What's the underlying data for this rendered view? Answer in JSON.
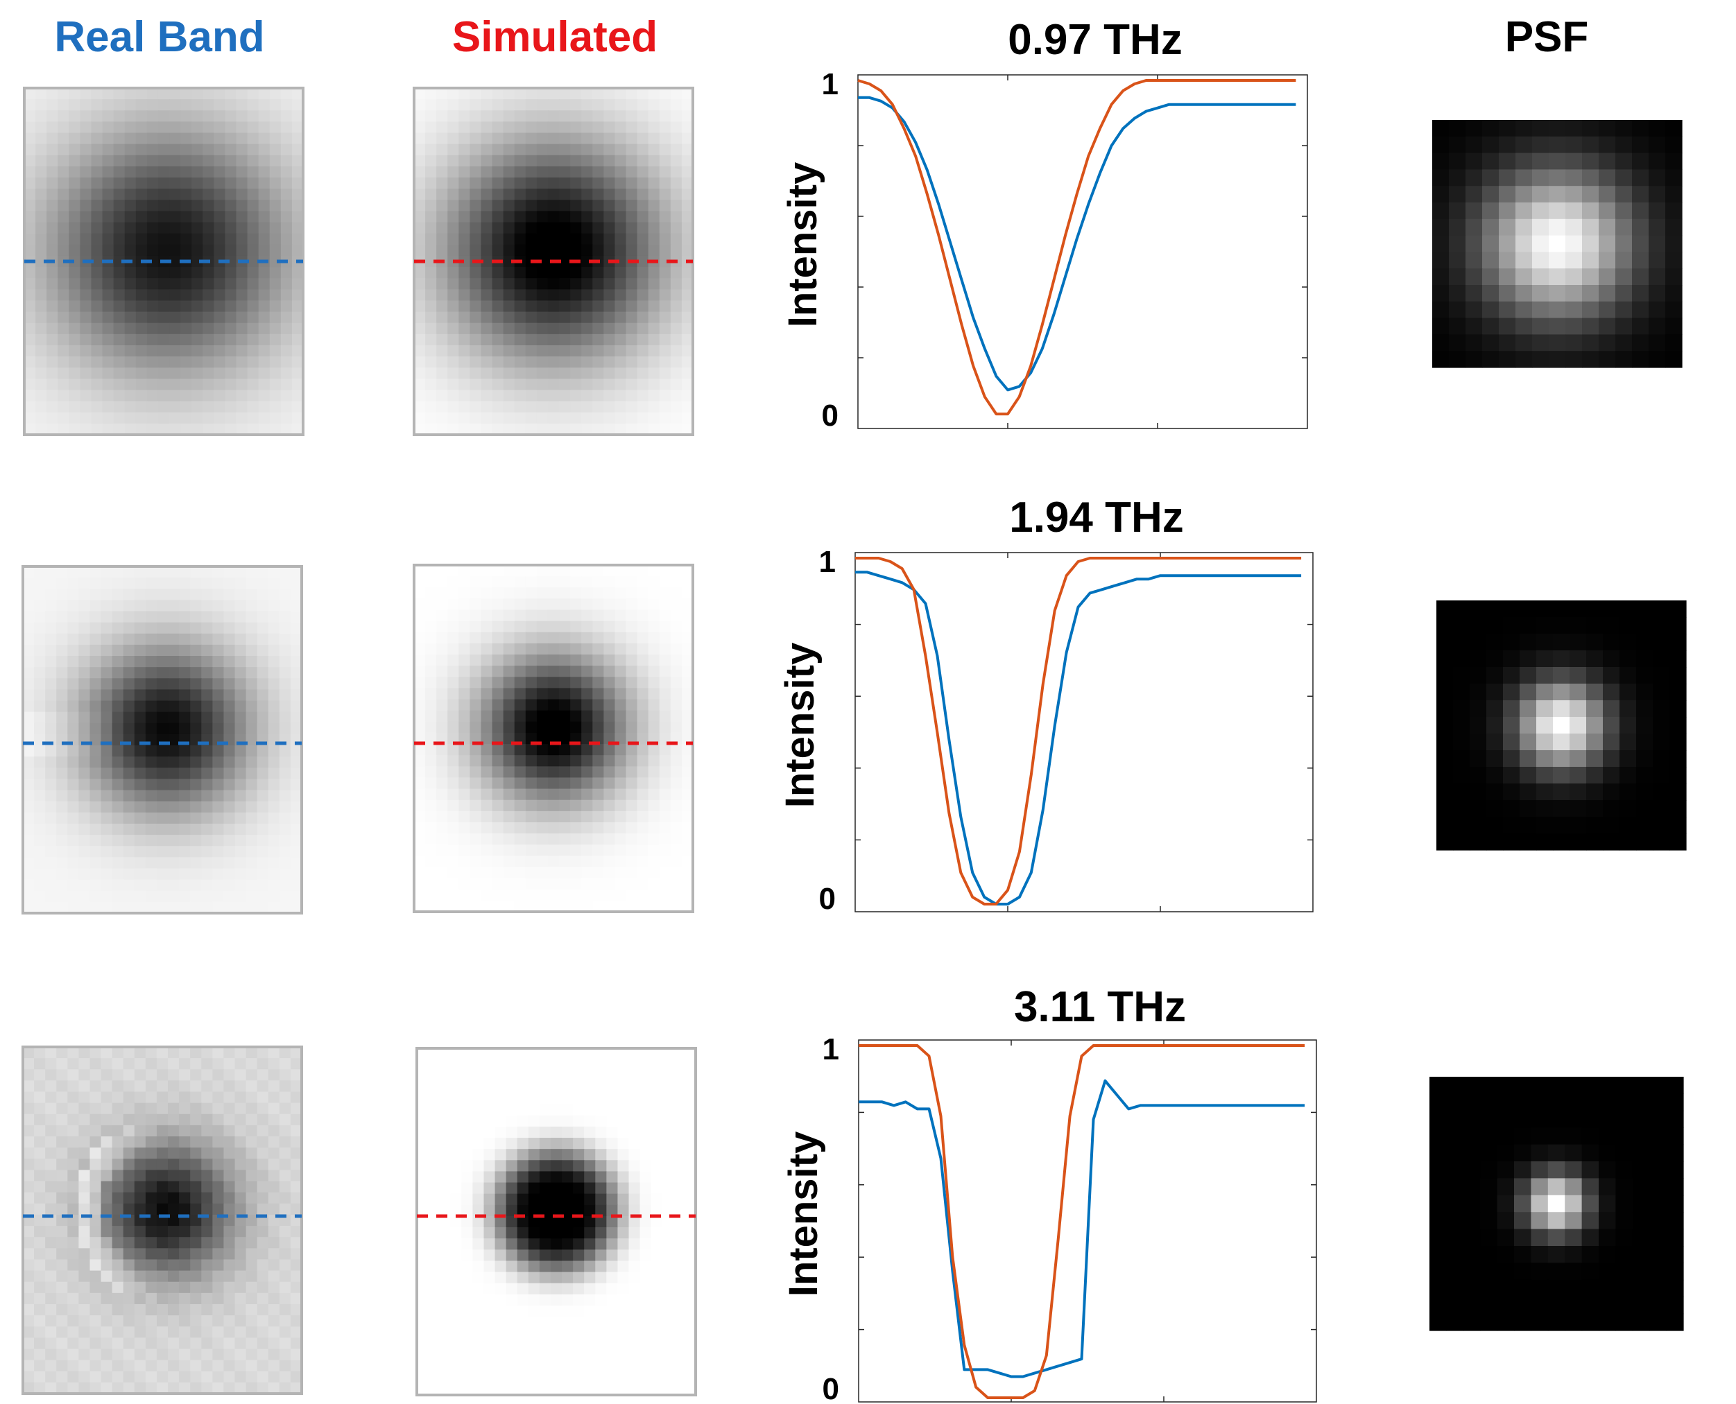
{
  "headers": {
    "real_band": "Real Band",
    "simulated": "Simulated",
    "psf": "PSF"
  },
  "colors": {
    "real": "#1f6fbf",
    "simulated": "#e8161a",
    "measured_line": "#0072bd",
    "simulated_line": "#d95319",
    "frame": "#b4b4b4"
  },
  "chart_data": [
    {
      "type": "line",
      "title": "0.97 THz",
      "xlabel": "",
      "ylabel": "Intensity",
      "xlim": [
        0,
        39
      ],
      "ylim": [
        0,
        1
      ],
      "ytick_labels": [
        "0",
        "1"
      ],
      "series": [
        {
          "name": "Real Band",
          "color": "#0072bd",
          "x": [
            0,
            1,
            2,
            3,
            4,
            5,
            6,
            7,
            8,
            9,
            10,
            11,
            12,
            13,
            14,
            15,
            16,
            17,
            18,
            19,
            20,
            21,
            22,
            23,
            24,
            25,
            26,
            27,
            28,
            29,
            30,
            31,
            32,
            33,
            34,
            35,
            36,
            37,
            38
          ],
          "values": [
            0.95,
            0.95,
            0.94,
            0.92,
            0.88,
            0.82,
            0.74,
            0.64,
            0.53,
            0.42,
            0.31,
            0.22,
            0.14,
            0.1,
            0.11,
            0.15,
            0.22,
            0.32,
            0.43,
            0.54,
            0.64,
            0.73,
            0.81,
            0.86,
            0.89,
            0.91,
            0.92,
            0.93,
            0.93,
            0.93,
            0.93,
            0.93,
            0.93,
            0.93,
            0.93,
            0.93,
            0.93,
            0.93,
            0.93
          ]
        },
        {
          "name": "Simulated",
          "color": "#d95319",
          "x": [
            0,
            1,
            2,
            3,
            4,
            5,
            6,
            7,
            8,
            9,
            10,
            11,
            12,
            13,
            14,
            15,
            16,
            17,
            18,
            19,
            20,
            21,
            22,
            23,
            24,
            25,
            26,
            27,
            28,
            29,
            30,
            31,
            32,
            33,
            34,
            35,
            36,
            37,
            38
          ],
          "values": [
            1.0,
            0.99,
            0.97,
            0.93,
            0.86,
            0.78,
            0.67,
            0.55,
            0.42,
            0.29,
            0.17,
            0.08,
            0.03,
            0.03,
            0.08,
            0.17,
            0.29,
            0.42,
            0.55,
            0.67,
            0.78,
            0.86,
            0.93,
            0.97,
            0.99,
            1.0,
            1.0,
            1.0,
            1.0,
            1.0,
            1.0,
            1.0,
            1.0,
            1.0,
            1.0,
            1.0,
            1.0,
            1.0,
            1.0
          ]
        }
      ]
    },
    {
      "type": "line",
      "title": "1.94 THz",
      "xlabel": "",
      "ylabel": "Intensity",
      "xlim": [
        0,
        39
      ],
      "ylim": [
        0,
        1
      ],
      "ytick_labels": [
        "0",
        "1"
      ],
      "series": [
        {
          "name": "Real Band",
          "color": "#0072bd",
          "x": [
            0,
            1,
            2,
            3,
            4,
            5,
            6,
            7,
            8,
            9,
            10,
            11,
            12,
            13,
            14,
            15,
            16,
            17,
            18,
            19,
            20,
            21,
            22,
            23,
            24,
            25,
            26,
            27,
            28,
            29,
            30,
            31,
            32,
            33,
            34,
            35,
            36,
            37,
            38
          ],
          "values": [
            0.96,
            0.96,
            0.95,
            0.94,
            0.93,
            0.91,
            0.87,
            0.72,
            0.48,
            0.26,
            0.1,
            0.03,
            0.01,
            0.01,
            0.03,
            0.1,
            0.28,
            0.52,
            0.73,
            0.86,
            0.9,
            0.91,
            0.92,
            0.93,
            0.94,
            0.94,
            0.95,
            0.95,
            0.95,
            0.95,
            0.95,
            0.95,
            0.95,
            0.95,
            0.95,
            0.95,
            0.95,
            0.95,
            0.95
          ]
        },
        {
          "name": "Simulated",
          "color": "#d95319",
          "x": [
            0,
            1,
            2,
            3,
            4,
            5,
            6,
            7,
            8,
            9,
            10,
            11,
            12,
            13,
            14,
            15,
            16,
            17,
            18,
            19,
            20,
            21,
            22,
            23,
            24,
            25,
            26,
            27,
            28,
            29,
            30,
            31,
            32,
            33,
            34,
            35,
            36,
            37,
            38
          ],
          "values": [
            1.0,
            1.0,
            1.0,
            0.99,
            0.97,
            0.91,
            0.72,
            0.5,
            0.27,
            0.1,
            0.03,
            0.01,
            0.01,
            0.05,
            0.16,
            0.38,
            0.64,
            0.85,
            0.95,
            0.99,
            1.0,
            1.0,
            1.0,
            1.0,
            1.0,
            1.0,
            1.0,
            1.0,
            1.0,
            1.0,
            1.0,
            1.0,
            1.0,
            1.0,
            1.0,
            1.0,
            1.0,
            1.0,
            1.0
          ]
        }
      ]
    },
    {
      "type": "line",
      "title": "3.11 THz",
      "xlabel": "",
      "ylabel": "Intensity",
      "xlim": [
        0,
        39
      ],
      "ylim": [
        0,
        1
      ],
      "ytick_labels": [
        "0",
        "1"
      ],
      "series": [
        {
          "name": "Real Band",
          "color": "#0072bd",
          "x": [
            0,
            1,
            2,
            3,
            4,
            5,
            6,
            7,
            8,
            9,
            10,
            11,
            12,
            13,
            14,
            15,
            16,
            17,
            18,
            19,
            20,
            21,
            22,
            23,
            24,
            25,
            26,
            27,
            28,
            29,
            30,
            31,
            32,
            33,
            34,
            35,
            36,
            37,
            38
          ],
          "values": [
            0.84,
            0.84,
            0.84,
            0.83,
            0.84,
            0.82,
            0.82,
            0.68,
            0.36,
            0.08,
            0.08,
            0.08,
            0.07,
            0.06,
            0.06,
            0.07,
            0.08,
            0.09,
            0.1,
            0.11,
            0.79,
            0.9,
            0.86,
            0.82,
            0.83,
            0.83,
            0.83,
            0.83,
            0.83,
            0.83,
            0.83,
            0.83,
            0.83,
            0.83,
            0.83,
            0.83,
            0.83,
            0.83,
            0.83
          ]
        },
        {
          "name": "Simulated",
          "color": "#d95319",
          "x": [
            0,
            1,
            2,
            3,
            4,
            5,
            6,
            7,
            8,
            9,
            10,
            11,
            12,
            13,
            14,
            15,
            16,
            17,
            18,
            19,
            20,
            21,
            22,
            23,
            24,
            25,
            26,
            27,
            28,
            29,
            30,
            31,
            32,
            33,
            34,
            35,
            36,
            37,
            38
          ],
          "values": [
            1.0,
            1.0,
            1.0,
            1.0,
            1.0,
            1.0,
            0.97,
            0.8,
            0.4,
            0.15,
            0.03,
            0.0,
            0.0,
            0.0,
            0.0,
            0.02,
            0.12,
            0.45,
            0.8,
            0.97,
            1.0,
            1.0,
            1.0,
            1.0,
            1.0,
            1.0,
            1.0,
            1.0,
            1.0,
            1.0,
            1.0,
            1.0,
            1.0,
            1.0,
            1.0,
            1.0,
            1.0,
            1.0,
            1.0
          ]
        }
      ]
    }
  ],
  "images": {
    "rows": [
      {
        "real_sigma": 7.5,
        "real_darkness": 0.93,
        "sim_sigma": 6.8,
        "psf_sigma": 3.2
      },
      {
        "real_sigma": 5.2,
        "real_darkness": 0.97,
        "sim_sigma": 4.6,
        "psf_sigma": 1.9
      },
      {
        "real_sigma": 4.2,
        "real_darkness": 0.95,
        "sim_sigma": 3.9,
        "psf_sigma": 1.3
      }
    ]
  }
}
